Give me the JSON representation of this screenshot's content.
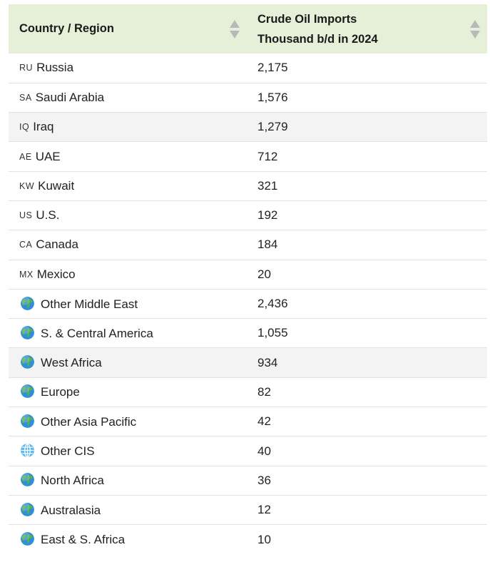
{
  "table": {
    "headers": {
      "country": "Country / Region",
      "value_line1": "Crude Oil Imports",
      "value_line2": "Thousand b/d in 2024"
    },
    "rows": [
      {
        "code": "RU",
        "icon": "",
        "name": "Russia",
        "value": "2,175"
      },
      {
        "code": "SA",
        "icon": "",
        "name": "Saudi Arabia",
        "value": "1,576"
      },
      {
        "code": "IQ",
        "icon": "",
        "name": "Iraq",
        "value": "1,279"
      },
      {
        "code": "AE",
        "icon": "",
        "name": "UAE",
        "value": "712"
      },
      {
        "code": "KW",
        "icon": "",
        "name": "Kuwait",
        "value": "321"
      },
      {
        "code": "US",
        "icon": "",
        "name": "U.S.",
        "value": "192"
      },
      {
        "code": "CA",
        "icon": "",
        "name": "Canada",
        "value": "184"
      },
      {
        "code": "MX",
        "icon": "",
        "name": "Mexico",
        "value": "20"
      },
      {
        "code": "",
        "icon": "globe-icon",
        "name": "Other Middle East",
        "value": "2,436"
      },
      {
        "code": "",
        "icon": "globe-icon",
        "name": "S. & Central America",
        "value": "1,055"
      },
      {
        "code": "",
        "icon": "globe-icon",
        "name": "West Africa",
        "value": "934"
      },
      {
        "code": "",
        "icon": "globe-icon",
        "name": "Europe",
        "value": "82"
      },
      {
        "code": "",
        "icon": "globe-icon",
        "name": "Other Asia Pacific",
        "value": "42"
      },
      {
        "code": "",
        "icon": "globe-with-meridians-icon",
        "name": "Other CIS",
        "value": "40"
      },
      {
        "code": "",
        "icon": "globe-icon",
        "name": "North Africa",
        "value": "36"
      },
      {
        "code": "",
        "icon": "globe-icon",
        "name": "Australasia",
        "value": "12"
      },
      {
        "code": "",
        "icon": "globe-icon",
        "name": "East & S. Africa",
        "value": "10"
      }
    ]
  },
  "colors": {
    "header_bg": "#e6f0d9",
    "row_shade": "#f3f3f3",
    "border": "#e3e3e3",
    "sort_arrow": "#b9b9b9"
  },
  "chart_data": {
    "type": "table",
    "columns": [
      "Country / Region",
      "Crude Oil Imports Thousand b/d in 2024"
    ],
    "categories": [
      "Russia",
      "Saudi Arabia",
      "Iraq",
      "UAE",
      "Kuwait",
      "U.S.",
      "Canada",
      "Mexico",
      "Other Middle East",
      "S. & Central America",
      "West Africa",
      "Europe",
      "Other Asia Pacific",
      "Other CIS",
      "North Africa",
      "Australasia",
      "East & S. Africa"
    ],
    "values": [
      2175,
      1576,
      1279,
      712,
      321,
      192,
      184,
      20,
      2436,
      1055,
      934,
      82,
      42,
      40,
      36,
      12,
      10
    ]
  }
}
